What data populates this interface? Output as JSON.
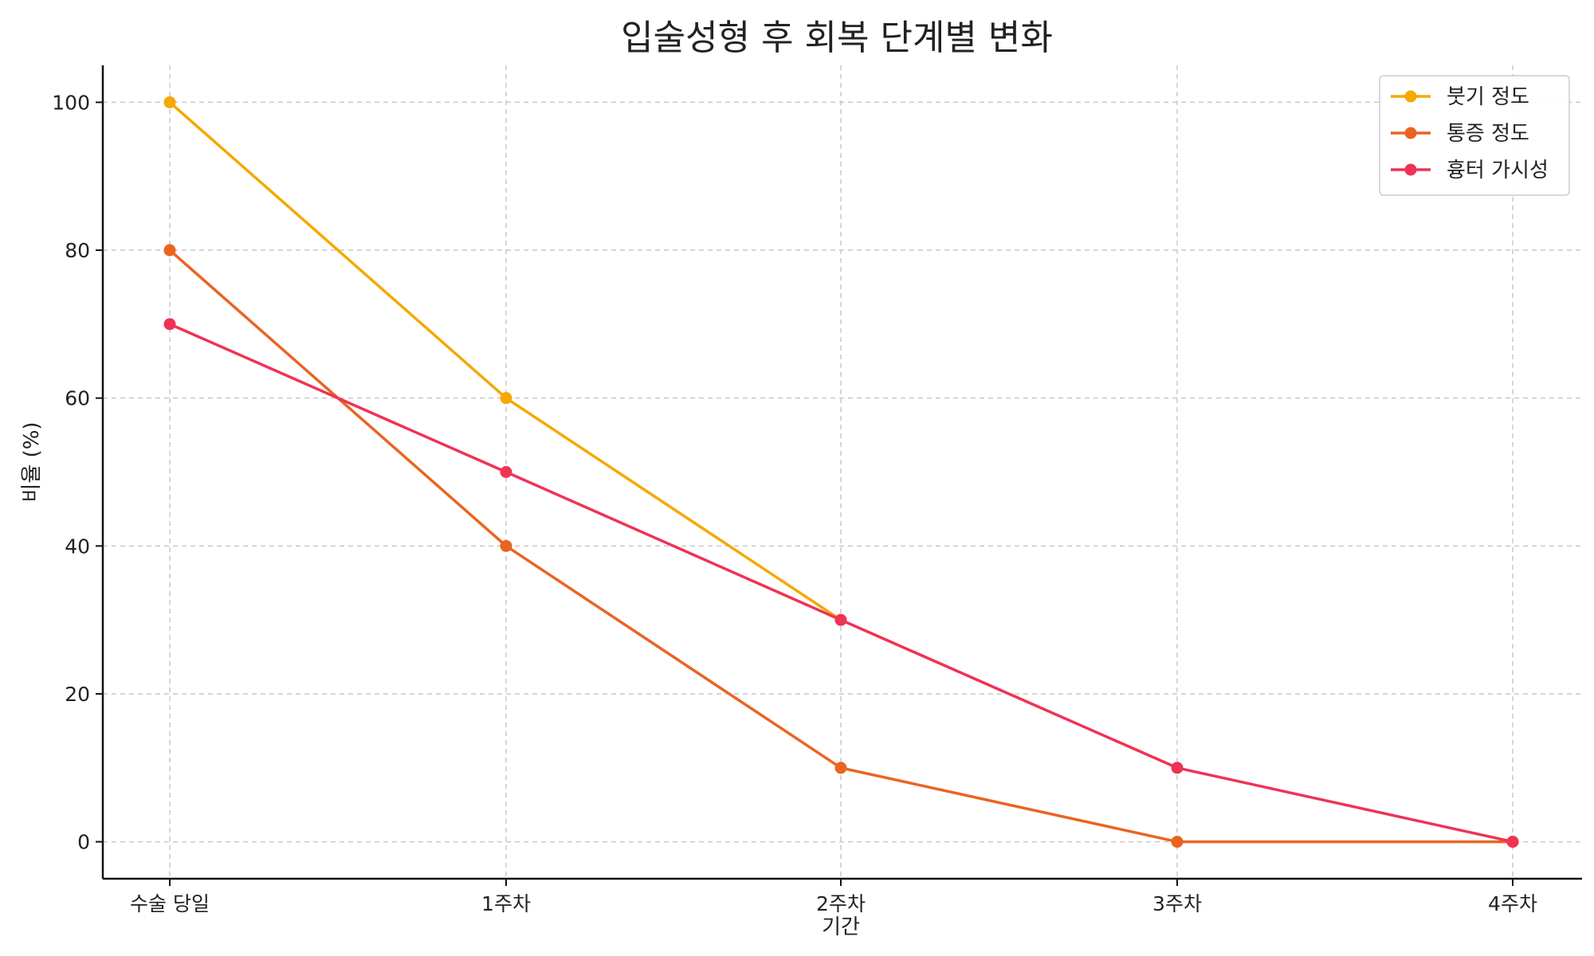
{
  "chart_data": {
    "type": "line",
    "title": "입술성형 후 회복 단계별 변화",
    "xlabel": "기간",
    "ylabel": "비율 (%)",
    "categories": [
      "수술 당일",
      "1주차",
      "2주차",
      "3주차",
      "4주차"
    ],
    "ylim": [
      -5,
      105
    ],
    "yticks": [
      0,
      20,
      40,
      60,
      80,
      100
    ],
    "grid": true,
    "legend_position": "top-right",
    "series": [
      {
        "name": "붓기 정도",
        "color": "#f5a800",
        "values": [
          100,
          60,
          30,
          null,
          null
        ]
      },
      {
        "name": "통증 정도",
        "color": "#ea6421",
        "values": [
          80,
          40,
          10,
          0,
          0
        ]
      },
      {
        "name": "흉터 가시성",
        "color": "#ee3355",
        "values": [
          70,
          50,
          30,
          10,
          0
        ]
      }
    ]
  }
}
